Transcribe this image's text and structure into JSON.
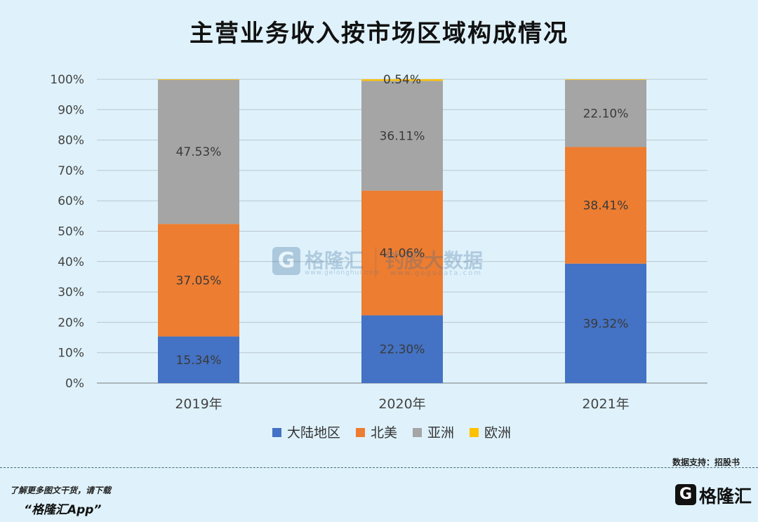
{
  "chart_data": {
    "type": "bar",
    "stacked": true,
    "title": "主营业务收入按市场区域构成情况",
    "categories": [
      "2019年",
      "2020年",
      "2021年"
    ],
    "series": [
      {
        "name": "大陆地区",
        "color": "#4472c4",
        "values": [
          15.34,
          22.3,
          39.32
        ],
        "labels": [
          "15.34%",
          "22.30%",
          "39.32%"
        ]
      },
      {
        "name": "北美",
        "color": "#ed7d31",
        "values": [
          37.05,
          41.06,
          38.41
        ],
        "labels": [
          "37.05%",
          "41.06%",
          "38.41%"
        ]
      },
      {
        "name": "亚洲",
        "color": "#a5a5a5",
        "values": [
          47.53,
          36.11,
          22.1
        ],
        "labels": [
          "47.53%",
          "36.11%",
          "22.10%"
        ]
      },
      {
        "name": "欧洲",
        "color": "#ffc000",
        "values": [
          0.08,
          0.54,
          0.17
        ],
        "labels": [
          "",
          "0.54%",
          ""
        ]
      }
    ],
    "yticks": [
      "0%",
      "10%",
      "20%",
      "30%",
      "40%",
      "50%",
      "60%",
      "70%",
      "80%",
      "90%",
      "100%"
    ],
    "ylim": [
      0,
      100
    ],
    "grid": true,
    "legend": "bottom"
  },
  "watermark": {
    "g": "G",
    "brand": "格隆汇",
    "brand_url": "www.gelonghui.com",
    "data": "钓股大数据",
    "data_url": "www.gogudata.com"
  },
  "source": "数据支持：招股书",
  "footer": {
    "hint": "了解更多图文干货，请下载",
    "app": "“格隆汇App”",
    "logo_g": "G",
    "logo_text": "格隆汇"
  }
}
